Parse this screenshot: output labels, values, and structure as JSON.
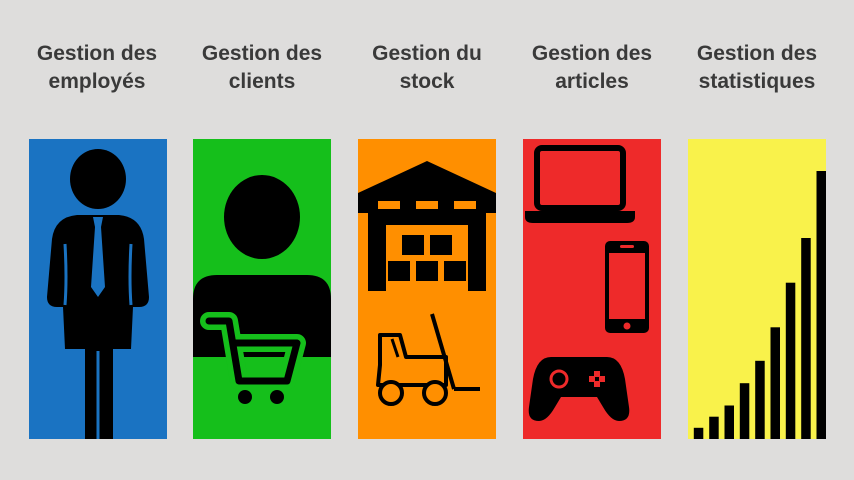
{
  "modules": [
    {
      "line1": "Gestion des",
      "line2": "employés",
      "color": "#1a73c2",
      "icon": "employee-icon"
    },
    {
      "line1": "Gestion des",
      "line2": "clients",
      "color": "#15bf1b",
      "icon": "customer-cart-icon"
    },
    {
      "line1": "Gestion du",
      "line2": "stock",
      "color": "#ff8f00",
      "icon": "warehouse-forklift-icon"
    },
    {
      "line1": "Gestion des",
      "line2": "articles",
      "color": "#ee2a2a",
      "icon": "devices-icon"
    },
    {
      "line1": "Gestion des",
      "line2": "statistiques",
      "color": "#f9f24b",
      "icon": "bar-chart-icon"
    }
  ],
  "stats_chart": {
    "type": "bar",
    "values": [
      1,
      2,
      3,
      5,
      7,
      10,
      14,
      18,
      24
    ]
  }
}
